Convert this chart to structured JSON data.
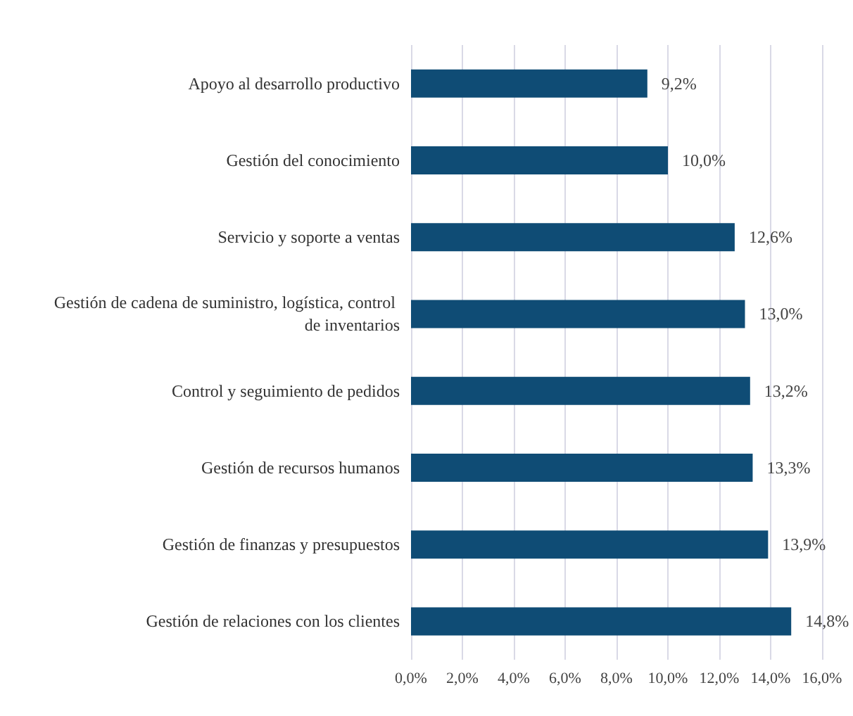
{
  "chart_data": {
    "type": "bar",
    "orientation": "horizontal",
    "categories": [
      "Apoyo al desarrollo productivo",
      "Gestión del conocimiento",
      "Servicio y soporte a ventas",
      "Gestión de cadena de suministro, logística, control de inventarios",
      "Control y seguimiento de pedidos",
      "Gestión de recursos humanos",
      "Gestión de finanzas y presupuestos",
      "Gestión de relaciones con los clientes"
    ],
    "values": [
      9.2,
      10.0,
      12.6,
      13.0,
      13.2,
      13.3,
      13.9,
      14.8
    ],
    "value_labels": [
      "9,2%",
      "10,0%",
      "12,6%",
      "13,0%",
      "13,2%",
      "13,3%",
      "13,9%",
      "14,8%"
    ],
    "color": "#0f4c75",
    "xlim": [
      0,
      16
    ],
    "xticks": [
      {
        "value": 0,
        "label": "0,0%"
      },
      {
        "value": 2,
        "label": "2,0%"
      },
      {
        "value": 4,
        "label": "4,0%"
      },
      {
        "value": 6,
        "label": "6,0%"
      },
      {
        "value": 8,
        "label": "8,0%"
      },
      {
        "value": 10,
        "label": "10,0%"
      },
      {
        "value": 12,
        "label": "12,0%"
      },
      {
        "value": 14,
        "label": "14,0%"
      },
      {
        "value": 16,
        "label": "16,0%"
      }
    ],
    "grid": "x"
  }
}
